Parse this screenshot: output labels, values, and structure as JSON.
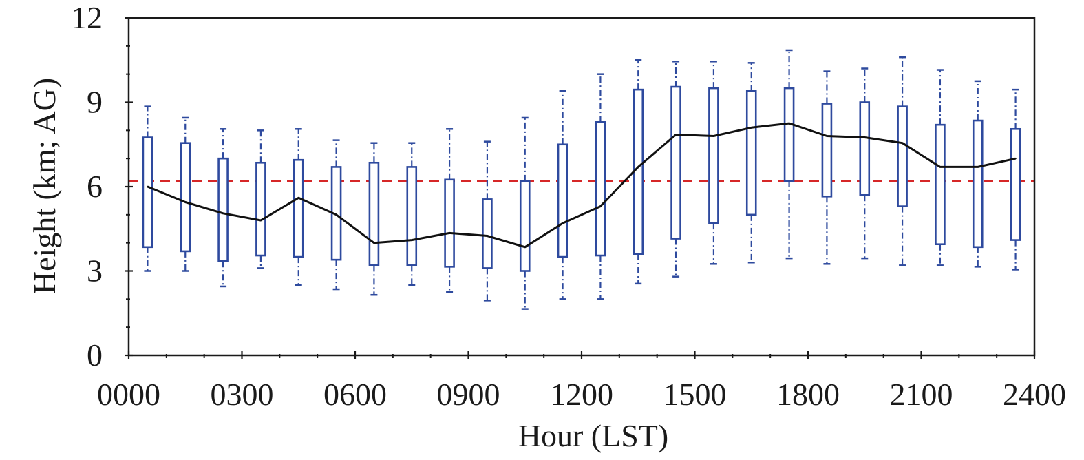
{
  "chart_data": {
    "type": "box",
    "title": "",
    "xlabel": "Hour (LST)",
    "ylabel": "Height (km; AG)",
    "xlim": [
      0,
      2400
    ],
    "ylim": [
      0,
      12
    ],
    "x_ticks": [
      "0000",
      "0300",
      "0600",
      "0900",
      "1200",
      "1500",
      "1800",
      "2100",
      "2400"
    ],
    "y_ticks": [
      "0",
      "3",
      "6",
      "9",
      "12"
    ],
    "reference_line": {
      "value": 6.2,
      "color": "#d62728",
      "style": "dashed"
    },
    "colors": {
      "box": "#2e4a9e",
      "median_line": "#111111"
    },
    "boxes": [
      {
        "hour": 50,
        "whisker_low": 3.0,
        "q1": 3.85,
        "q3": 7.75,
        "whisker_high": 8.85
      },
      {
        "hour": 150,
        "whisker_low": 3.0,
        "q1": 3.7,
        "q3": 7.55,
        "whisker_high": 8.45
      },
      {
        "hour": 250,
        "whisker_low": 2.45,
        "q1": 3.35,
        "q3": 7.0,
        "whisker_high": 8.05
      },
      {
        "hour": 350,
        "whisker_low": 3.1,
        "q1": 3.55,
        "q3": 6.85,
        "whisker_high": 8.0
      },
      {
        "hour": 450,
        "whisker_low": 2.5,
        "q1": 3.5,
        "q3": 6.95,
        "whisker_high": 8.05
      },
      {
        "hour": 550,
        "whisker_low": 2.35,
        "q1": 3.4,
        "q3": 6.7,
        "whisker_high": 7.65
      },
      {
        "hour": 650,
        "whisker_low": 2.15,
        "q1": 3.2,
        "q3": 6.85,
        "whisker_high": 7.55
      },
      {
        "hour": 750,
        "whisker_low": 2.5,
        "q1": 3.2,
        "q3": 6.7,
        "whisker_high": 7.55
      },
      {
        "hour": 850,
        "whisker_low": 2.25,
        "q1": 3.15,
        "q3": 6.25,
        "whisker_high": 8.05
      },
      {
        "hour": 950,
        "whisker_low": 1.95,
        "q1": 3.1,
        "q3": 5.55,
        "whisker_high": 7.6
      },
      {
        "hour": 1050,
        "whisker_low": 1.65,
        "q1": 3.0,
        "q3": 6.2,
        "whisker_high": 8.45
      },
      {
        "hour": 1150,
        "whisker_low": 2.0,
        "q1": 3.5,
        "q3": 7.5,
        "whisker_high": 9.4
      },
      {
        "hour": 1250,
        "whisker_low": 2.0,
        "q1": 3.55,
        "q3": 8.3,
        "whisker_high": 10.0
      },
      {
        "hour": 1350,
        "whisker_low": 2.55,
        "q1": 3.6,
        "q3": 9.45,
        "whisker_high": 10.5
      },
      {
        "hour": 1450,
        "whisker_low": 2.8,
        "q1": 4.15,
        "q3": 9.55,
        "whisker_high": 10.45
      },
      {
        "hour": 1550,
        "whisker_low": 3.25,
        "q1": 4.7,
        "q3": 9.5,
        "whisker_high": 10.45
      },
      {
        "hour": 1650,
        "whisker_low": 3.3,
        "q1": 5.0,
        "q3": 9.4,
        "whisker_high": 10.4
      },
      {
        "hour": 1750,
        "whisker_low": 3.45,
        "q1": 6.2,
        "q3": 9.5,
        "whisker_high": 10.85
      },
      {
        "hour": 1850,
        "whisker_low": 3.25,
        "q1": 5.65,
        "q3": 8.95,
        "whisker_high": 10.1
      },
      {
        "hour": 1950,
        "whisker_low": 3.45,
        "q1": 5.7,
        "q3": 9.0,
        "whisker_high": 10.2
      },
      {
        "hour": 2050,
        "whisker_low": 3.2,
        "q1": 5.3,
        "q3": 8.85,
        "whisker_high": 10.6
      },
      {
        "hour": 2150,
        "whisker_low": 3.2,
        "q1": 3.95,
        "q3": 8.2,
        "whisker_high": 10.15
      },
      {
        "hour": 2250,
        "whisker_low": 3.15,
        "q1": 3.85,
        "q3": 8.35,
        "whisker_high": 9.75
      },
      {
        "hour": 2350,
        "whisker_low": 3.05,
        "q1": 4.1,
        "q3": 8.05,
        "whisker_high": 9.45
      }
    ],
    "median_series": {
      "name": "median",
      "x": [
        50,
        150,
        250,
        350,
        450,
        550,
        650,
        750,
        850,
        950,
        1050,
        1150,
        1250,
        1350,
        1450,
        1550,
        1650,
        1750,
        1850,
        1950,
        2050,
        2150,
        2250,
        2350
      ],
      "values": [
        6.0,
        5.45,
        5.05,
        4.8,
        5.6,
        5.0,
        4.0,
        4.1,
        4.35,
        4.25,
        3.85,
        4.7,
        5.3,
        6.7,
        7.85,
        7.8,
        8.1,
        8.25,
        7.8,
        7.75,
        7.55,
        6.7,
        6.7,
        7.0
      ]
    }
  }
}
